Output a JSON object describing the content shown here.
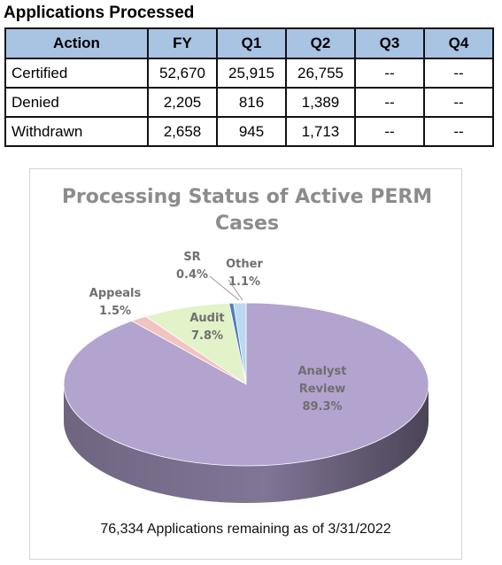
{
  "table": {
    "title": "Applications Processed",
    "headers": [
      "Action",
      "FY",
      "Q1",
      "Q2",
      "Q3",
      "Q4"
    ],
    "rows": [
      {
        "action": "Certified",
        "values": [
          "52,670",
          "25,915",
          "26,755",
          "--",
          "--"
        ]
      },
      {
        "action": "Denied",
        "values": [
          "2,205",
          "816",
          "1,389",
          "--",
          "--"
        ]
      },
      {
        "action": "Withdrawn",
        "values": [
          "2,658",
          "945",
          "1,713",
          "--",
          "--"
        ]
      }
    ],
    "header_color": "#a9c3e3"
  },
  "chart_data": {
    "type": "pie",
    "title_lines": [
      "Processing Status of Active PERM",
      "Cases"
    ],
    "categories": [
      "Analyst Review",
      "Appeals",
      "Audit",
      "SR",
      "Other"
    ],
    "values": [
      89.3,
      1.5,
      7.8,
      0.4,
      1.1
    ],
    "value_labels": [
      "89.3%",
      "1.5%",
      "7.8%",
      "0.4%",
      "1.1%"
    ],
    "colors": [
      "#b3a3cf",
      "#f1c4c0",
      "#e2f2c9",
      "#4f81bd",
      "#bcd8f2"
    ],
    "footnote": "76,334 Applications remaining as of 3/31/2022"
  }
}
